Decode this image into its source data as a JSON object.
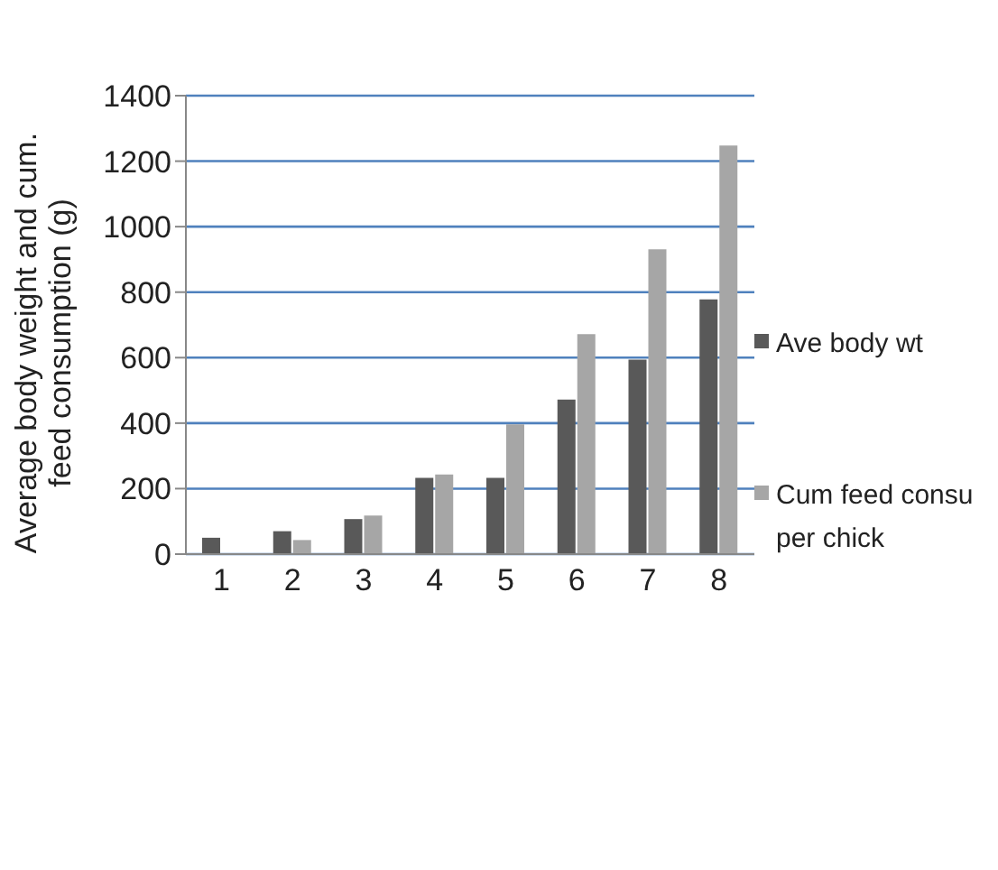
{
  "chart_data": {
    "type": "bar",
    "ylabel": "Average body weight and cum. feed consumption (g)",
    "categories": [
      "1",
      "2",
      "3",
      "4",
      "5",
      "6",
      "7",
      "8"
    ],
    "series": [
      {
        "name": "Ave body wt",
        "color": "#595959",
        "values": [
          50,
          70,
          107,
          233,
          233,
          472,
          594,
          778
        ]
      },
      {
        "name": "Cum feed consu per chick",
        "color": "#a6a6a6",
        "values": [
          0,
          43,
          118,
          243,
          396,
          672,
          931,
          1248
        ]
      }
    ],
    "ylim": [
      0,
      1400
    ],
    "yticks": [
      0,
      200,
      400,
      600,
      800,
      1000,
      1200,
      1400
    ],
    "grid": "y",
    "legend": "right"
  }
}
